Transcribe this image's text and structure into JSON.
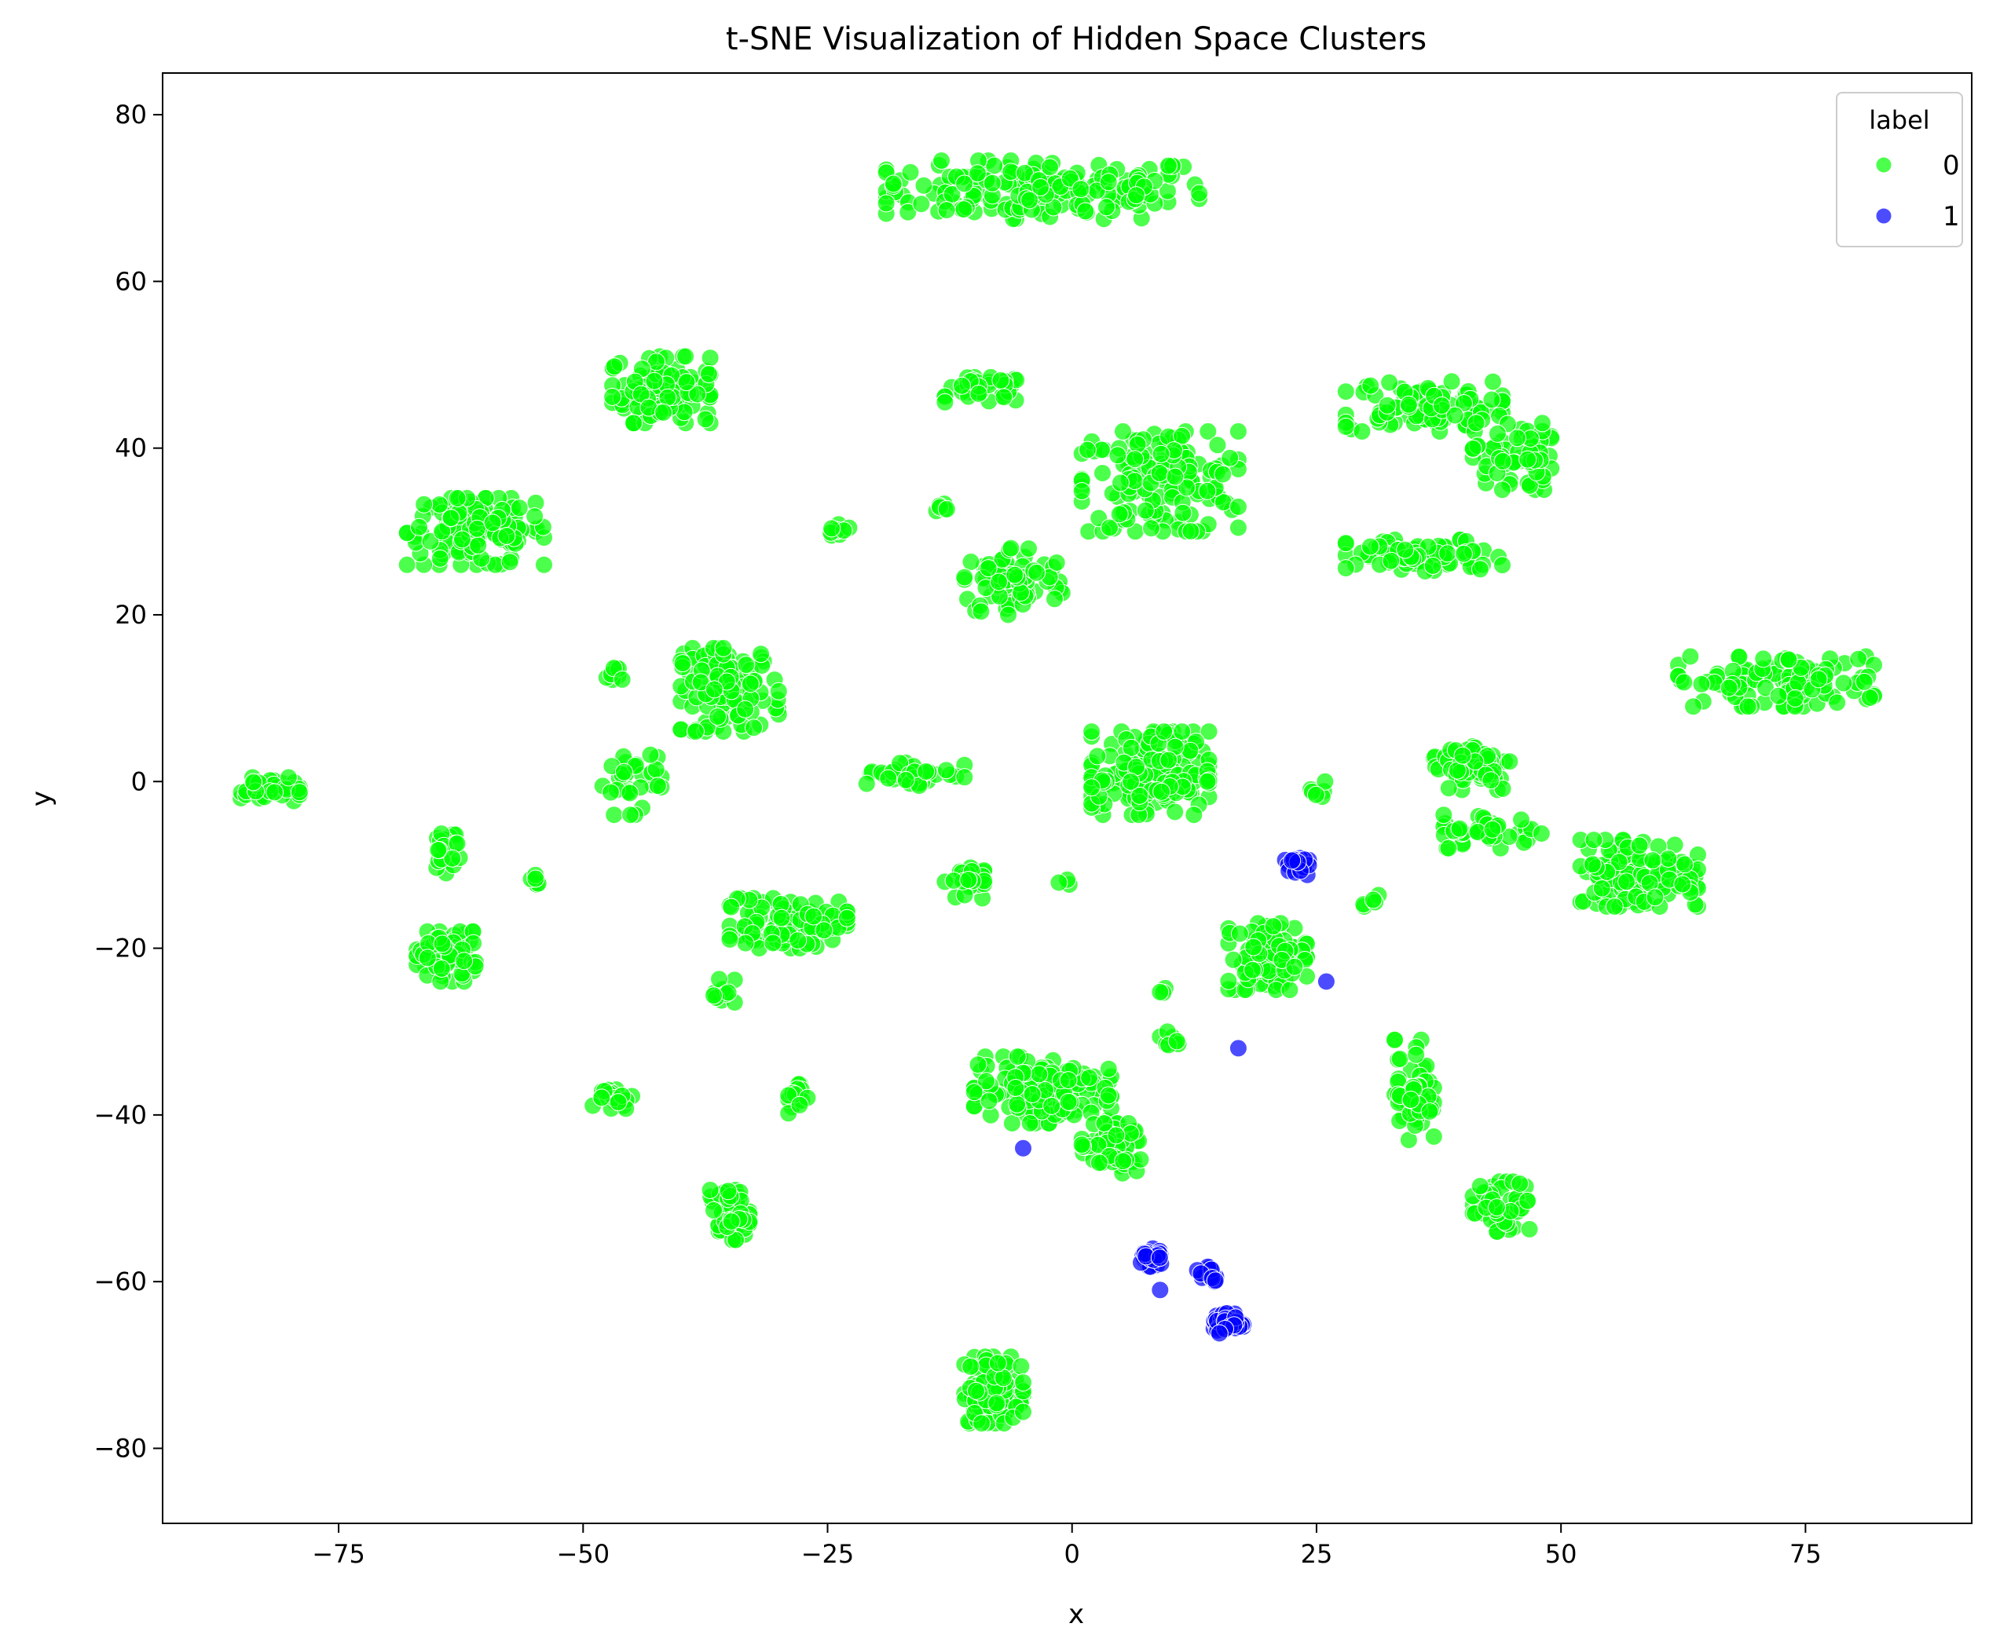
{
  "chart_data": {
    "type": "scatter",
    "title": "t-SNE Visualization of Hidden Space Clusters",
    "xlabel": "x",
    "ylabel": "y",
    "xlim": [
      -93,
      92
    ],
    "ylim": [
      -89,
      85
    ],
    "xticks": [
      -75,
      -50,
      -25,
      0,
      25,
      50,
      75
    ],
    "xtick_labels": [
      "−75",
      "−50",
      "−25",
      "0",
      "25",
      "50",
      "75"
    ],
    "yticks": [
      -80,
      -60,
      -40,
      -20,
      0,
      20,
      40,
      60,
      80
    ],
    "ytick_labels": [
      "−80",
      "−60",
      "−40",
      "−20",
      "0",
      "20",
      "40",
      "60",
      "80"
    ],
    "grid": false,
    "legend": {
      "title": "label",
      "placement": "top-right",
      "entries": [
        "0",
        "1"
      ]
    },
    "series": [
      {
        "name": "0",
        "color": "#00ff00",
        "clusters": [
          {
            "center": [
              -3,
              71
            ],
            "spread": [
              16,
              3.5
            ],
            "count": 170
          },
          {
            "center": [
              -42,
              47
            ],
            "spread": [
              5,
              4
            ],
            "count": 110
          },
          {
            "center": [
              -61,
              30
            ],
            "spread": [
              7,
              4
            ],
            "count": 130
          },
          {
            "center": [
              -9,
              47
            ],
            "spread": [
              4,
              1.5
            ],
            "count": 35
          },
          {
            "center": [
              -24,
              30
            ],
            "spread": [
              1.2,
              1.2
            ],
            "count": 10
          },
          {
            "center": [
              -13,
              33
            ],
            "spread": [
              1,
              1
            ],
            "count": 6
          },
          {
            "center": [
              9,
              36
            ],
            "spread": [
              8,
              6
            ],
            "count": 150
          },
          {
            "center": [
              -6,
              24
            ],
            "spread": [
              5,
              4
            ],
            "count": 80
          },
          {
            "center": [
              36,
              45
            ],
            "spread": [
              8,
              3
            ],
            "count": 90
          },
          {
            "center": [
              45,
              39
            ],
            "spread": [
              4,
              4
            ],
            "count": 60
          },
          {
            "center": [
              36,
              27
            ],
            "spread": [
              8,
              2
            ],
            "count": 80
          },
          {
            "center": [
              72,
              12
            ],
            "spread": [
              10,
              3
            ],
            "count": 110
          },
          {
            "center": [
              -35,
              11
            ],
            "spread": [
              5,
              5
            ],
            "count": 110
          },
          {
            "center": [
              -45,
              0
            ],
            "spread": [
              3,
              4
            ],
            "count": 35
          },
          {
            "center": [
              -47,
              13
            ],
            "spread": [
              1,
              1
            ],
            "count": 8
          },
          {
            "center": [
              -82,
              -1
            ],
            "spread": [
              3,
              1.5
            ],
            "count": 40
          },
          {
            "center": [
              -64,
              -8
            ],
            "spread": [
              1.5,
              3
            ],
            "count": 25
          },
          {
            "center": [
              -64,
              -21
            ],
            "spread": [
              3,
              3
            ],
            "count": 80
          },
          {
            "center": [
              -55,
              -12
            ],
            "spread": [
              0.8,
              0.8
            ],
            "count": 6
          },
          {
            "center": [
              -29,
              -17
            ],
            "spread": [
              6,
              3
            ],
            "count": 100
          },
          {
            "center": [
              -36,
              -25
            ],
            "spread": [
              1.5,
              1.5
            ],
            "count": 10
          },
          {
            "center": [
              -16,
              1
            ],
            "spread": [
              5,
              1.5
            ],
            "count": 35
          },
          {
            "center": [
              -11,
              -12
            ],
            "spread": [
              2,
              2
            ],
            "count": 30
          },
          {
            "center": [
              8,
              1
            ],
            "spread": [
              6,
              5
            ],
            "count": 170
          },
          {
            "center": [
              41,
              2
            ],
            "spread": [
              4,
              3
            ],
            "count": 60
          },
          {
            "center": [
              43,
              -6
            ],
            "spread": [
              5,
              2
            ],
            "count": 40
          },
          {
            "center": [
              58,
              -11
            ],
            "spread": [
              6,
              4
            ],
            "count": 140
          },
          {
            "center": [
              20,
              -21
            ],
            "spread": [
              4,
              4
            ],
            "count": 90
          },
          {
            "center": [
              25,
              -1
            ],
            "spread": [
              1,
              1
            ],
            "count": 6
          },
          {
            "center": [
              -47,
              -38
            ],
            "spread": [
              2,
              1.5
            ],
            "count": 20
          },
          {
            "center": [
              -28,
              -38
            ],
            "spread": [
              1,
              2
            ],
            "count": 15
          },
          {
            "center": [
              -35,
              -52
            ],
            "spread": [
              2,
              3
            ],
            "count": 70
          },
          {
            "center": [
              -3,
              -37
            ],
            "spread": [
              7,
              4
            ],
            "count": 150
          },
          {
            "center": [
              4,
              -44
            ],
            "spread": [
              3,
              3
            ],
            "count": 60
          },
          {
            "center": [
              35,
              -37
            ],
            "spread": [
              2,
              6
            ],
            "count": 60
          },
          {
            "center": [
              44,
              -51
            ],
            "spread": [
              3,
              3
            ],
            "count": 50
          },
          {
            "center": [
              -8,
              -73
            ],
            "spread": [
              3,
              4
            ],
            "count": 110
          },
          {
            "center": [
              10,
              -31
            ],
            "spread": [
              1,
              1
            ],
            "count": 8
          },
          {
            "center": [
              -1,
              -12
            ],
            "spread": [
              1,
              0.5
            ],
            "count": 3
          },
          {
            "center": [
              9,
              -25
            ],
            "spread": [
              0.8,
              0.8
            ],
            "count": 3
          },
          {
            "center": [
              31,
              -14
            ],
            "spread": [
              1.5,
              1
            ],
            "count": 5
          }
        ]
      },
      {
        "name": "1",
        "color": "#0000ff",
        "clusters": [
          {
            "center": [
              23,
              -10
            ],
            "spread": [
              1.2,
              1.2
            ],
            "count": 20
          },
          {
            "center": [
              8,
              -57
            ],
            "spread": [
              1.2,
              1.2
            ],
            "count": 25
          },
          {
            "center": [
              14,
              -59
            ],
            "spread": [
              1.2,
              1.2
            ],
            "count": 15
          },
          {
            "center": [
              16,
              -65
            ],
            "spread": [
              1.5,
              1.2
            ],
            "count": 45
          }
        ],
        "points": [
          [
            26,
            -24
          ],
          [
            17,
            -32
          ],
          [
            -5,
            -44
          ],
          [
            9,
            -61
          ]
        ]
      }
    ]
  }
}
